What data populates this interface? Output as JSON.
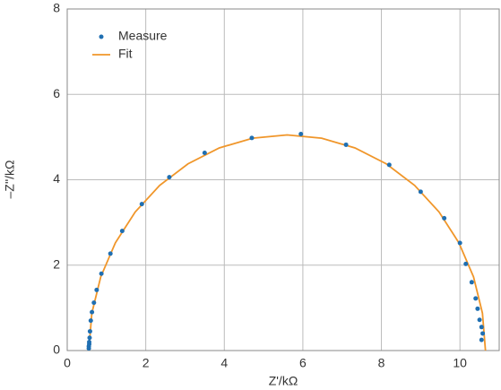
{
  "chart_data": {
    "type": "scatter",
    "xlabel": "Z'/kΩ",
    "ylabel": "–Z''/kΩ",
    "xlim": [
      0,
      11
    ],
    "ylim": [
      0,
      8
    ],
    "xticks": [
      0,
      2,
      4,
      6,
      8,
      10
    ],
    "yticks": [
      0,
      2,
      4,
      6,
      8
    ],
    "grid": true,
    "legend": "upper left",
    "series": [
      {
        "name": "Measure",
        "type": "scatter",
        "color": "#1f6fb2",
        "x": [
          0.55,
          0.55,
          0.56,
          0.56,
          0.57,
          0.58,
          0.6,
          0.63,
          0.68,
          0.75,
          0.87,
          1.1,
          1.4,
          1.9,
          2.6,
          3.5,
          4.7,
          5.95,
          7.1,
          8.2,
          9.0,
          9.6,
          10.0,
          10.15,
          10.3,
          10.4,
          10.45,
          10.5,
          10.55,
          10.58,
          10.55
        ],
        "values": [
          0.05,
          0.1,
          0.15,
          0.2,
          0.3,
          0.45,
          0.7,
          0.9,
          1.12,
          1.42,
          1.8,
          2.27,
          2.8,
          3.43,
          4.06,
          4.63,
          4.98,
          5.07,
          4.82,
          4.35,
          3.72,
          3.1,
          2.52,
          2.03,
          1.6,
          1.22,
          0.98,
          0.72,
          0.55,
          0.4,
          0.25
        ]
      },
      {
        "name": "Fit",
        "type": "line",
        "color": "#f0962a",
        "x": [
          0.55,
          0.627,
          0.854,
          1.227,
          1.732,
          2.354,
          3.075,
          3.873,
          4.723,
          5.6,
          6.477,
          7.327,
          8.125,
          8.846,
          9.468,
          9.973,
          10.346,
          10.573,
          10.65
        ],
        "values": [
          0,
          0.877,
          1.727,
          2.525,
          3.246,
          3.868,
          4.373,
          4.746,
          4.973,
          5.05,
          4.973,
          4.746,
          4.373,
          3.868,
          3.246,
          2.525,
          1.727,
          0.877,
          0
        ]
      }
    ]
  }
}
